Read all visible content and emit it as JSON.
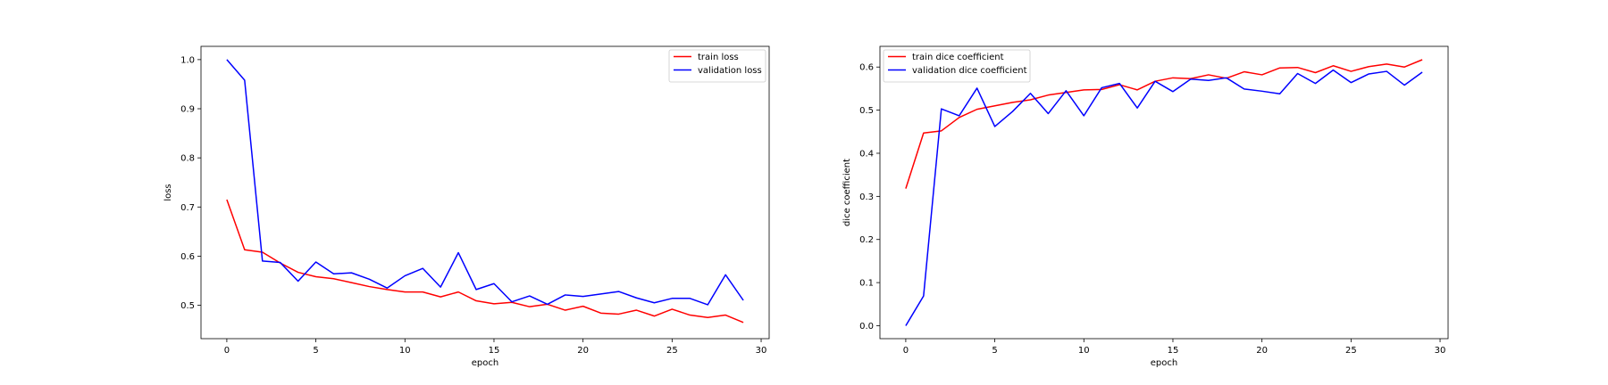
{
  "chart_data": [
    {
      "type": "line",
      "title": "",
      "xlabel": "epoch",
      "ylabel": "loss",
      "xlim": [
        -1.45,
        30.45
      ],
      "ylim": [
        0.432,
        1.027
      ],
      "xticks": [
        0,
        5,
        10,
        15,
        20,
        25,
        30
      ],
      "xtick_labels": [
        "0",
        "5",
        "10",
        "15",
        "20",
        "25",
        "30"
      ],
      "yticks": [
        0.5,
        0.6,
        0.7,
        0.8,
        0.9,
        1.0
      ],
      "ytick_labels": [
        "0.5",
        "0.6",
        "0.7",
        "0.8",
        "0.9",
        "1.0"
      ],
      "grid": false,
      "legend_position": "upper-right",
      "x": [
        0,
        1,
        2,
        3,
        4,
        5,
        6,
        7,
        8,
        9,
        10,
        11,
        12,
        13,
        14,
        15,
        16,
        17,
        18,
        19,
        20,
        21,
        22,
        23,
        24,
        25,
        26,
        27,
        28,
        29
      ],
      "series": [
        {
          "name": "train loss",
          "color": "#ff0000",
          "values": [
            0.715,
            0.613,
            0.608,
            0.586,
            0.567,
            0.558,
            0.554,
            0.546,
            0.538,
            0.532,
            0.527,
            0.527,
            0.517,
            0.527,
            0.509,
            0.503,
            0.506,
            0.497,
            0.502,
            0.49,
            0.498,
            0.484,
            0.482,
            0.49,
            0.478,
            0.492,
            0.48,
            0.475,
            0.48,
            0.465
          ]
        },
        {
          "name": "validation loss",
          "color": "#0000ff",
          "values": [
            1.0,
            0.958,
            0.59,
            0.587,
            0.549,
            0.588,
            0.564,
            0.566,
            0.553,
            0.535,
            0.56,
            0.575,
            0.537,
            0.607,
            0.532,
            0.544,
            0.507,
            0.519,
            0.502,
            0.521,
            0.518,
            0.523,
            0.528,
            0.515,
            0.505,
            0.514,
            0.514,
            0.501,
            0.562,
            0.51
          ]
        }
      ]
    },
    {
      "type": "line",
      "title": "",
      "xlabel": "epoch",
      "ylabel": "dice coefficient",
      "xlim": [
        -1.45,
        30.45
      ],
      "ylim": [
        -0.03,
        0.648
      ],
      "xticks": [
        0,
        5,
        10,
        15,
        20,
        25,
        30
      ],
      "xtick_labels": [
        "0",
        "5",
        "10",
        "15",
        "20",
        "25",
        "30"
      ],
      "yticks": [
        0.0,
        0.1,
        0.2,
        0.3,
        0.4,
        0.5,
        0.6
      ],
      "ytick_labels": [
        "0.0",
        "0.1",
        "0.2",
        "0.3",
        "0.4",
        "0.5",
        "0.6"
      ],
      "grid": false,
      "legend_position": "upper-left",
      "x": [
        0,
        1,
        2,
        3,
        4,
        5,
        6,
        7,
        8,
        9,
        10,
        11,
        12,
        13,
        14,
        15,
        16,
        17,
        18,
        19,
        20,
        21,
        22,
        23,
        24,
        25,
        26,
        27,
        28,
        29
      ],
      "series": [
        {
          "name": "train dice coefficient",
          "color": "#ff0000",
          "values": [
            0.318,
            0.447,
            0.452,
            0.483,
            0.502,
            0.51,
            0.518,
            0.524,
            0.535,
            0.541,
            0.547,
            0.548,
            0.559,
            0.547,
            0.567,
            0.575,
            0.573,
            0.582,
            0.574,
            0.589,
            0.582,
            0.598,
            0.599,
            0.587,
            0.603,
            0.59,
            0.601,
            0.607,
            0.6,
            0.617
          ]
        },
        {
          "name": "validation dice coefficient",
          "color": "#0000ff",
          "values": [
            0.0,
            0.069,
            0.503,
            0.487,
            0.551,
            0.462,
            0.497,
            0.539,
            0.492,
            0.545,
            0.487,
            0.552,
            0.562,
            0.505,
            0.567,
            0.543,
            0.572,
            0.569,
            0.575,
            0.549,
            0.544,
            0.538,
            0.585,
            0.562,
            0.593,
            0.564,
            0.584,
            0.59,
            0.558,
            0.588
          ]
        }
      ]
    }
  ]
}
